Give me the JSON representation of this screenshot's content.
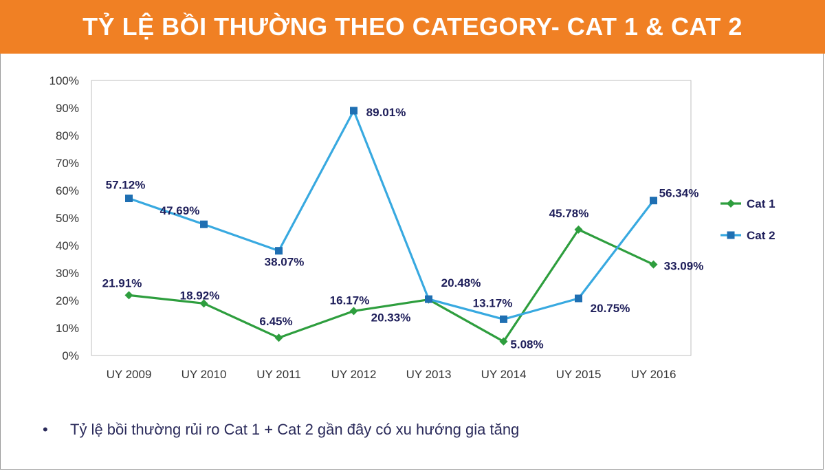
{
  "header": {
    "title": "TỶ LỆ BỒI THƯỜNG THEO CATEGORY- CAT 1 & CAT 2"
  },
  "colors": {
    "header_bg": "#f08024",
    "cat1": "#2e9e3e",
    "cat2": "#38a9e0",
    "label_text": "#1e1e5a"
  },
  "chart_data": {
    "type": "line",
    "title": "",
    "xlabel": "",
    "ylabel": "",
    "categories": [
      "UY 2009",
      "UY 2010",
      "UY 2011",
      "UY 2012",
      "UY 2013",
      "UY 2014",
      "UY 2015",
      "UY 2016"
    ],
    "ylim": [
      0,
      100
    ],
    "yticks": [
      "0%",
      "10%",
      "20%",
      "30%",
      "40%",
      "50%",
      "60%",
      "70%",
      "80%",
      "90%",
      "100%"
    ],
    "legend_position": "right",
    "grid": false,
    "series": [
      {
        "name": "Cat 1",
        "marker": "diamond",
        "color": "#2e9e3e",
        "values": [
          21.91,
          18.92,
          6.45,
          16.17,
          20.33,
          5.08,
          45.78,
          33.09
        ],
        "labels": [
          "21.91%",
          "18.92%",
          "6.45%",
          "16.17%",
          "20.33%",
          "5.08%",
          "45.78%",
          "33.09%"
        ]
      },
      {
        "name": "Cat 2",
        "marker": "square",
        "color": "#38a9e0",
        "values": [
          57.12,
          47.69,
          38.07,
          89.01,
          20.48,
          13.17,
          20.75,
          56.34
        ],
        "labels": [
          "57.12%",
          "47.69%",
          "38.07%",
          "89.01%",
          "20.48%",
          "13.17%",
          "20.75%",
          "56.34%"
        ]
      }
    ]
  },
  "footer": {
    "bullet": "•",
    "note": "Tỷ lệ bồi thường rủi ro Cat 1 + Cat 2 gần đây có xu hướng gia tăng"
  }
}
